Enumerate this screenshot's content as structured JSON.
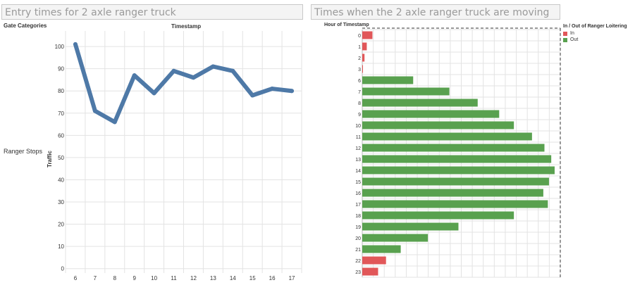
{
  "left_panel": {
    "title": "Entry times for 2 axle ranger truck",
    "row_header": "Gate Categories",
    "column_header": "Timestamp",
    "row_label": "Ranger Stops"
  },
  "right_panel": {
    "title": "Times when the  2 axle ranger truck are moving",
    "row_header": "Hour of Timestamp"
  },
  "legend": {
    "title": "In / Out of Ranger Loitering",
    "items": [
      {
        "label": "In",
        "color": "#e15759"
      },
      {
        "label": "Out",
        "color": "#59a14f"
      }
    ]
  },
  "chart_data": [
    {
      "type": "line",
      "title": "Entry times for 2 axle ranger truck",
      "xlabel": "Timestamp",
      "ylabel": "Traffic",
      "x": [
        6,
        7,
        8,
        9,
        10,
        11,
        12,
        13,
        14,
        15,
        16,
        17
      ],
      "series": [
        {
          "values": [
            101,
            71,
            66,
            87,
            79,
            89,
            86,
            91,
            89,
            78,
            81,
            80
          ],
          "color": "#4e79a7"
        }
      ],
      "yticks": [
        0,
        10,
        20,
        30,
        40,
        50,
        60,
        70,
        80,
        90,
        100
      ],
      "ylim": [
        -2,
        107
      ],
      "grid": true
    },
    {
      "type": "bar",
      "orientation": "horizontal",
      "title": "Times when the  2 axle ranger truck are moving",
      "ylabel": "Hour of Timestamp",
      "categories": [
        "0",
        "1",
        "2",
        "3",
        "6",
        "7",
        "8",
        "9",
        "10",
        "11",
        "12",
        "13",
        "14",
        "15",
        "16",
        "17",
        "18",
        "19",
        "20",
        "21",
        "22",
        "23"
      ],
      "values": [
        9,
        4,
        2,
        0.5,
        45,
        77,
        102,
        121,
        134,
        150,
        161,
        167,
        170,
        165,
        160,
        164,
        134,
        85,
        58,
        34,
        21,
        14
      ],
      "groups": [
        "In",
        "In",
        "In",
        "In",
        "Out",
        "Out",
        "Out",
        "Out",
        "Out",
        "Out",
        "Out",
        "Out",
        "Out",
        "Out",
        "Out",
        "Out",
        "Out",
        "Out",
        "Out",
        "Out",
        "In",
        "In"
      ],
      "xlim": [
        0,
        175
      ],
      "grid": true,
      "legend_position": "right"
    }
  ]
}
